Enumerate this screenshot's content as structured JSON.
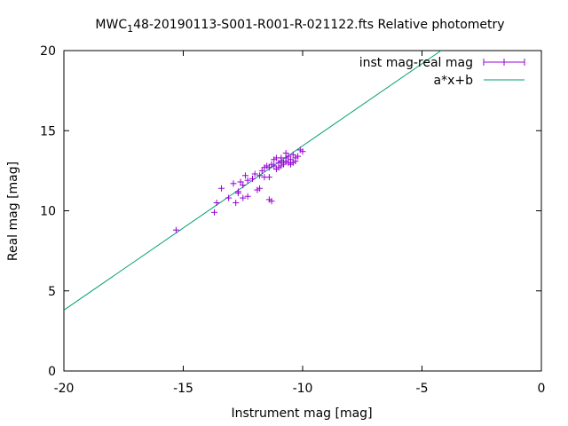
{
  "chart_data": {
    "type": "scatter",
    "title_parts": [
      "MWC",
      "1",
      "48-20190113-S001-R001-R-021122.fts Relative photometry"
    ],
    "xlabel": "Instrument mag [mag]",
    "ylabel": "Real mag [mag]",
    "xlim": [
      -20,
      0
    ],
    "ylim": [
      0,
      20
    ],
    "xticks": [
      -20,
      -15,
      -10,
      -5,
      0
    ],
    "yticks": [
      0,
      5,
      10,
      15,
      20
    ],
    "xtick_labels": [
      "-20",
      "-15",
      "-10",
      "-5",
      "0"
    ],
    "ytick_labels": [
      "0",
      "5",
      "10",
      "15",
      "20"
    ],
    "grid": false,
    "legend_position": "top-right",
    "series": [
      {
        "name": "inst mag-real mag",
        "kind": "errorbar-points",
        "color": "#9400d3",
        "points": [
          [
            -15.3,
            8.8
          ],
          [
            -13.7,
            9.9
          ],
          [
            -13.6,
            10.5
          ],
          [
            -13.4,
            11.4
          ],
          [
            -13.1,
            10.8
          ],
          [
            -12.9,
            11.7
          ],
          [
            -12.8,
            10.5
          ],
          [
            -12.7,
            11.1
          ],
          [
            -12.7,
            11.2
          ],
          [
            -12.6,
            11.8
          ],
          [
            -12.5,
            10.8
          ],
          [
            -12.5,
            11.6
          ],
          [
            -12.4,
            12.2
          ],
          [
            -12.3,
            10.9
          ],
          [
            -12.3,
            11.9
          ],
          [
            -12.1,
            12.0
          ],
          [
            -12.0,
            12.3
          ],
          [
            -11.9,
            11.3
          ],
          [
            -11.8,
            11.4
          ],
          [
            -11.8,
            12.2
          ],
          [
            -11.7,
            12.5
          ],
          [
            -11.6,
            12.1
          ],
          [
            -11.5,
            12.8
          ],
          [
            -11.4,
            12.1
          ],
          [
            -11.4,
            12.7
          ],
          [
            -11.4,
            10.7
          ],
          [
            -11.3,
            12.9
          ],
          [
            -11.3,
            10.6
          ],
          [
            -11.2,
            12.8
          ],
          [
            -11.1,
            13.3
          ],
          [
            -11.1,
            12.6
          ],
          [
            -11.0,
            13.0
          ],
          [
            -11.0,
            12.7
          ],
          [
            -10.9,
            13.1
          ],
          [
            -10.9,
            13.3
          ],
          [
            -10.8,
            12.9
          ],
          [
            -10.8,
            13.0
          ],
          [
            -10.7,
            13.1
          ],
          [
            -10.7,
            13.3
          ],
          [
            -10.6,
            13.4
          ],
          [
            -10.6,
            13.0
          ],
          [
            -10.5,
            12.9
          ],
          [
            -10.5,
            13.2
          ],
          [
            -10.4,
            13.5
          ],
          [
            -10.3,
            13.3
          ],
          [
            -10.3,
            13.1
          ],
          [
            -10.2,
            13.4
          ],
          [
            -10.0,
            13.7
          ],
          [
            -10.1,
            13.8
          ],
          [
            -10.4,
            13.0
          ],
          [
            -10.9,
            12.8
          ],
          [
            -11.6,
            12.7
          ],
          [
            -11.2,
            13.2
          ],
          [
            -10.7,
            13.6
          ],
          [
            -10.5,
            13.0
          ]
        ]
      },
      {
        "name": "a*x+b",
        "kind": "line",
        "color": "#009e73",
        "line": [
          [
            -20,
            3.8
          ],
          [
            -4.2,
            20
          ]
        ]
      }
    ]
  }
}
